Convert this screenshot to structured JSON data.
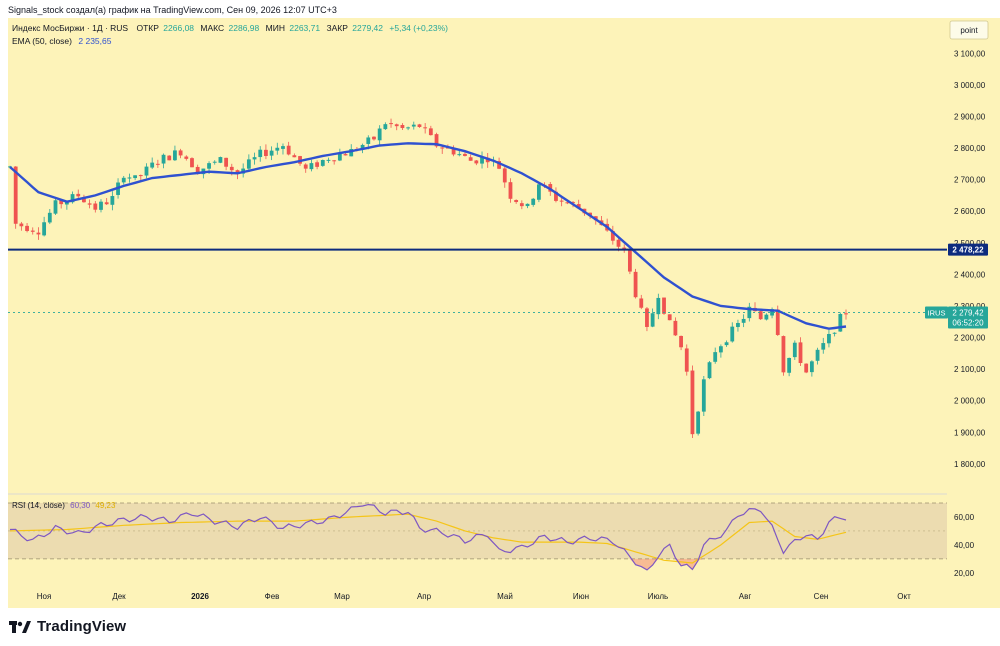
{
  "header": {
    "publish_line": "Signals_stock создал(а) график на TradingView.com, Сен 09, 2026 12:07 UTC+3"
  },
  "legend": {
    "symbol": "Индекс МосБиржи · 1Д · RUS",
    "open_label": "ОТКР",
    "open_value": "2266,08",
    "high_label": "МАКС",
    "high_value": "2286,98",
    "low_label": "МИН",
    "low_value": "2263,71",
    "close_label": "ЗАКР",
    "close_value": "2279,42",
    "change": "+5,34 (+0,23%)",
    "ema_label": "EMA (50, close)",
    "ema_value": "2 235,65",
    "rsi_label": "RSI (14, close)",
    "rsi_value": "60,30",
    "rsi_ma_value": "49,23"
  },
  "scale_mode": "point",
  "price_axis": {
    "ticks": [
      "3 100,00",
      "3 000,00",
      "2 900,00",
      "2 800,00",
      "2 700,00",
      "2 600,00",
      "2 500,00",
      "2 400,00",
      "2 300,00",
      "2 200,00",
      "2 100,00",
      "2 000,00",
      "1 900,00",
      "1 800,00"
    ]
  },
  "rsi_axis": {
    "ticks": [
      "60,00",
      "40,00",
      "20,00"
    ]
  },
  "time_axis": {
    "labels": [
      "Ноя",
      "Дек",
      "2026",
      "Фев",
      "Мар",
      "Апр",
      "Май",
      "Июн",
      "Июль",
      "Авг",
      "Сен",
      "Окт"
    ]
  },
  "badges": {
    "level": "2 478,22",
    "ticker": "IRUS",
    "price": "2 279,42",
    "countdown": "06:52:20"
  },
  "footer": {
    "brand": "TradingView"
  },
  "colors": {
    "background": "#fdf3b9",
    "up": "#26a69a",
    "down": "#ef5350",
    "ema": "#2f51d0",
    "level_line": "#0d2b7e",
    "rsi_line": "#7e57c2",
    "rsi_ma": "#f5c518",
    "rsi_band": "#ecdcb0"
  },
  "chart_data": {
    "type": "candlestick",
    "title": "Индекс МосБиржи · 1Д · RUS",
    "ylim": [
      1730,
      3180
    ],
    "horizontal_line": 2478.22,
    "last_price": 2279.42,
    "month_axis": [
      "Ноя",
      "Дек",
      "2026",
      "Фев",
      "Мар",
      "Апр",
      "Май",
      "Июн",
      "Июль",
      "Авг",
      "Сен",
      "Окт"
    ],
    "price_path": [
      [
        0,
        2740
      ],
      [
        1,
        2560
      ],
      [
        5,
        2540
      ],
      [
        8,
        2620
      ],
      [
        12,
        2650
      ],
      [
        15,
        2610
      ],
      [
        18,
        2640
      ],
      [
        20,
        2720
      ],
      [
        22,
        2700
      ],
      [
        26,
        2760
      ],
      [
        30,
        2790
      ],
      [
        33,
        2730
      ],
      [
        37,
        2760
      ],
      [
        40,
        2720
      ],
      [
        44,
        2780
      ],
      [
        48,
        2810
      ],
      [
        50,
        2770
      ],
      [
        52,
        2730
      ],
      [
        56,
        2770
      ],
      [
        60,
        2790
      ],
      [
        64,
        2830
      ],
      [
        66,
        2880
      ],
      [
        69,
        2860
      ],
      [
        72,
        2870
      ],
      [
        75,
        2810
      ],
      [
        78,
        2790
      ],
      [
        81,
        2760
      ],
      [
        84,
        2770
      ],
      [
        86,
        2740
      ],
      [
        88,
        2650
      ],
      [
        91,
        2610
      ],
      [
        93,
        2690
      ],
      [
        96,
        2640
      ],
      [
        99,
        2620
      ],
      [
        102,
        2590
      ],
      [
        105,
        2530
      ],
      [
        108,
        2470
      ],
      [
        110,
        2340
      ],
      [
        112,
        2220
      ],
      [
        114,
        2340
      ],
      [
        116,
        2240
      ],
      [
        118,
        2170
      ],
      [
        119,
        2090
      ],
      [
        120,
        1900
      ],
      [
        122,
        2060
      ],
      [
        124,
        2160
      ],
      [
        126,
        2200
      ],
      [
        128,
        2240
      ],
      [
        130,
        2290
      ],
      [
        132,
        2260
      ],
      [
        134,
        2300
      ],
      [
        135,
        2220
      ],
      [
        136,
        2100
      ],
      [
        138,
        2170
      ],
      [
        140,
        2090
      ],
      [
        142,
        2150
      ],
      [
        144,
        2200
      ],
      [
        146,
        2260
      ],
      [
        147,
        2280
      ]
    ],
    "ema50_path": [
      [
        0,
        2740
      ],
      [
        5,
        2660
      ],
      [
        10,
        2630
      ],
      [
        15,
        2650
      ],
      [
        20,
        2680
      ],
      [
        25,
        2705
      ],
      [
        30,
        2715
      ],
      [
        35,
        2725
      ],
      [
        40,
        2720
      ],
      [
        45,
        2740
      ],
      [
        50,
        2755
      ],
      [
        55,
        2775
      ],
      [
        60,
        2790
      ],
      [
        65,
        2808
      ],
      [
        70,
        2815
      ],
      [
        75,
        2812
      ],
      [
        80,
        2790
      ],
      [
        85,
        2760
      ],
      [
        90,
        2720
      ],
      [
        95,
        2670
      ],
      [
        100,
        2610
      ],
      [
        105,
        2550
      ],
      [
        110,
        2470
      ],
      [
        115,
        2390
      ],
      [
        120,
        2330
      ],
      [
        125,
        2300
      ],
      [
        130,
        2290
      ],
      [
        135,
        2285
      ],
      [
        140,
        2245
      ],
      [
        144,
        2228
      ],
      [
        147,
        2235
      ]
    ],
    "rsi_path": [
      [
        0,
        51
      ],
      [
        4,
        43
      ],
      [
        8,
        52
      ],
      [
        12,
        48
      ],
      [
        16,
        54
      ],
      [
        20,
        58
      ],
      [
        24,
        60
      ],
      [
        28,
        57
      ],
      [
        32,
        63
      ],
      [
        36,
        57
      ],
      [
        40,
        53
      ],
      [
        44,
        60
      ],
      [
        48,
        52
      ],
      [
        52,
        55
      ],
      [
        56,
        58
      ],
      [
        60,
        65
      ],
      [
        62,
        70
      ],
      [
        66,
        63
      ],
      [
        70,
        64
      ],
      [
        72,
        52
      ],
      [
        76,
        49
      ],
      [
        80,
        43
      ],
      [
        84,
        48
      ],
      [
        86,
        35
      ],
      [
        90,
        38
      ],
      [
        94,
        46
      ],
      [
        98,
        42
      ],
      [
        102,
        45
      ],
      [
        106,
        43
      ],
      [
        108,
        35
      ],
      [
        110,
        28
      ],
      [
        112,
        20
      ],
      [
        114,
        33
      ],
      [
        116,
        39
      ],
      [
        118,
        26
      ],
      [
        120,
        22
      ],
      [
        122,
        40
      ],
      [
        126,
        50
      ],
      [
        128,
        62
      ],
      [
        132,
        66
      ],
      [
        134,
        52
      ],
      [
        136,
        36
      ],
      [
        140,
        48
      ],
      [
        142,
        43
      ],
      [
        144,
        57
      ],
      [
        147,
        60
      ]
    ],
    "rsi_ma_path": [
      [
        0,
        50
      ],
      [
        10,
        51
      ],
      [
        20,
        54
      ],
      [
        30,
        56
      ],
      [
        40,
        57
      ],
      [
        50,
        57
      ],
      [
        60,
        60
      ],
      [
        70,
        62
      ],
      [
        75,
        57
      ],
      [
        80,
        50
      ],
      [
        85,
        45
      ],
      [
        90,
        42
      ],
      [
        95,
        42
      ],
      [
        100,
        42
      ],
      [
        105,
        41
      ],
      [
        110,
        35
      ],
      [
        115,
        29
      ],
      [
        120,
        27
      ],
      [
        125,
        40
      ],
      [
        130,
        56
      ],
      [
        134,
        57
      ],
      [
        138,
        46
      ],
      [
        142,
        44
      ],
      [
        147,
        49
      ]
    ],
    "rsi_ylim": [
      12,
      75
    ],
    "rsi_band": [
      30,
      70
    ]
  }
}
